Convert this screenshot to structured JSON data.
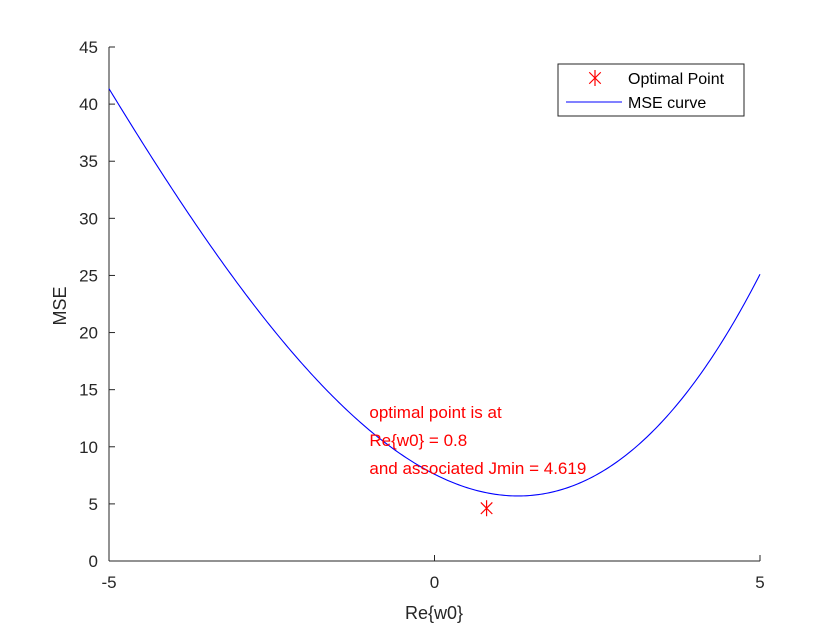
{
  "chart_data": {
    "type": "line",
    "xlabel": "Re{w0}",
    "ylabel": "MSE",
    "xlim": [
      -5,
      5
    ],
    "ylim": [
      0,
      45
    ],
    "x_ticks": [
      -5,
      0,
      5
    ],
    "y_ticks": [
      0,
      5,
      10,
      15,
      20,
      25,
      30,
      35,
      40,
      45
    ],
    "grid": false,
    "legend_position": "top-right",
    "series": [
      {
        "name": "Optimal Point",
        "kind": "marker",
        "marker": "asterisk",
        "color": "#ff0000",
        "x": [
          0.8
        ],
        "y": [
          4.619
        ]
      },
      {
        "name": "MSE curve",
        "kind": "line",
        "color": "#0000ff",
        "x": [
          -5,
          -4,
          -3,
          -2,
          -1,
          0,
          0.8,
          1,
          2,
          3,
          4,
          5
        ],
        "y": [
          41.2,
          32.2,
          24.2,
          17.6,
          12.1,
          7.8,
          4.619,
          4.7,
          6.3,
          10.7,
          16.7,
          24.2
        ]
      }
    ],
    "annotation": {
      "color": "#ff0000",
      "x": -1.0,
      "y": 12.5,
      "lines": [
        "optimal point is at",
        "Re{w0} = 0.8",
        "and associated Jmin = 4.619"
      ]
    }
  }
}
